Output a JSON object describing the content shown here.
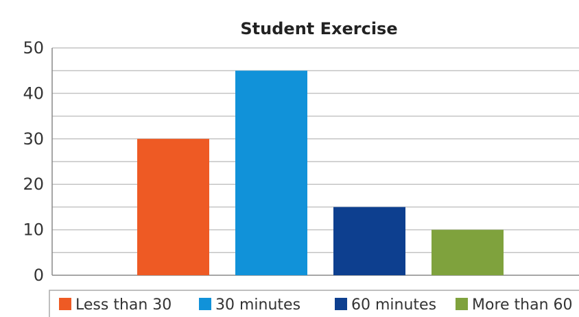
{
  "chart_data": {
    "type": "bar",
    "title": "Student Exercise",
    "categories": [
      "Less than 30",
      "30 minutes",
      "60 minutes",
      "More than 60"
    ],
    "values": [
      30,
      45,
      15,
      10
    ],
    "colors": [
      "#ee5a24",
      "#1192d9",
      "#0d3f8f",
      "#7fa23d"
    ],
    "ylim": [
      0,
      50
    ],
    "yticks": [
      0,
      10,
      20,
      30,
      40,
      50
    ],
    "xlabel": "",
    "ylabel": "",
    "grid": true,
    "legend": {
      "placement": "bottom",
      "entries": [
        "Less than 30",
        "30 minutes",
        "60 minutes",
        "More than 60"
      ]
    }
  }
}
